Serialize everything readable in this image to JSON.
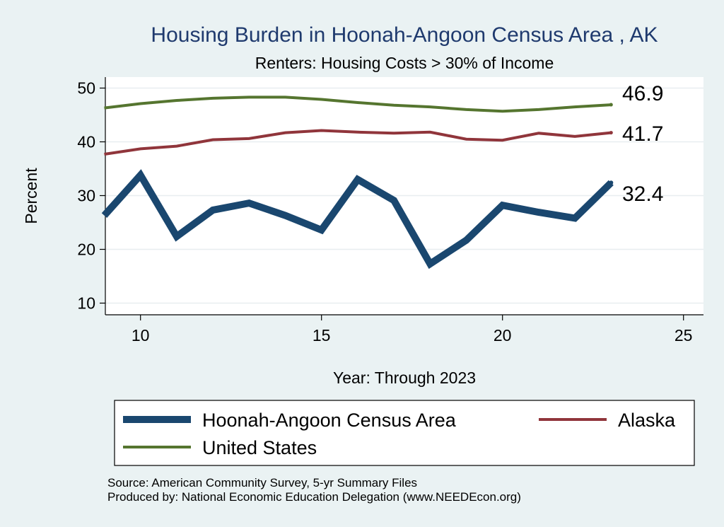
{
  "chart_data": {
    "type": "line",
    "title": "Housing Burden in Hoonah-Angoon Census Area , AK",
    "subtitle": "Renters: Housing Costs > 30% of Income",
    "xlabel": "Year: Through 2023",
    "ylabel": "Percent",
    "xlim": [
      9,
      25
    ],
    "ylim": [
      10,
      50
    ],
    "xticks": [
      10,
      15,
      20,
      25
    ],
    "yticks": [
      10,
      20,
      30,
      40,
      50
    ],
    "grid": true,
    "legend_position": "bottom",
    "x": [
      9,
      10,
      11,
      12,
      13,
      14,
      15,
      16,
      17,
      18,
      19,
      20,
      21,
      22,
      23
    ],
    "series": [
      {
        "name": "Hoonah-Angoon Census Area",
        "color": "#1a476f",
        "values": [
          26.3,
          33.8,
          22.4,
          27.3,
          28.6,
          26.3,
          23.6,
          33.0,
          29.1,
          17.3,
          21.7,
          28.2,
          26.9,
          25.8,
          32.4
        ],
        "end_label": "32.4"
      },
      {
        "name": "Alaska",
        "color": "#90353b",
        "values": [
          37.7,
          38.7,
          39.2,
          40.4,
          40.6,
          41.7,
          42.1,
          41.8,
          41.6,
          41.8,
          40.5,
          40.3,
          41.6,
          41.0,
          41.7
        ],
        "end_label": "41.7"
      },
      {
        "name": "United States",
        "color": "#55752f",
        "values": [
          46.3,
          47.1,
          47.7,
          48.1,
          48.3,
          48.3,
          47.9,
          47.3,
          46.8,
          46.5,
          46.0,
          45.7,
          46.0,
          46.5,
          46.9
        ],
        "end_label": "46.9"
      }
    ]
  },
  "notes": {
    "source": "Source: American Community Survey, 5-yr Summary Files",
    "produced_by": "Produced by: National Economic Education Delegation (www.NEEDEcon.org)"
  }
}
